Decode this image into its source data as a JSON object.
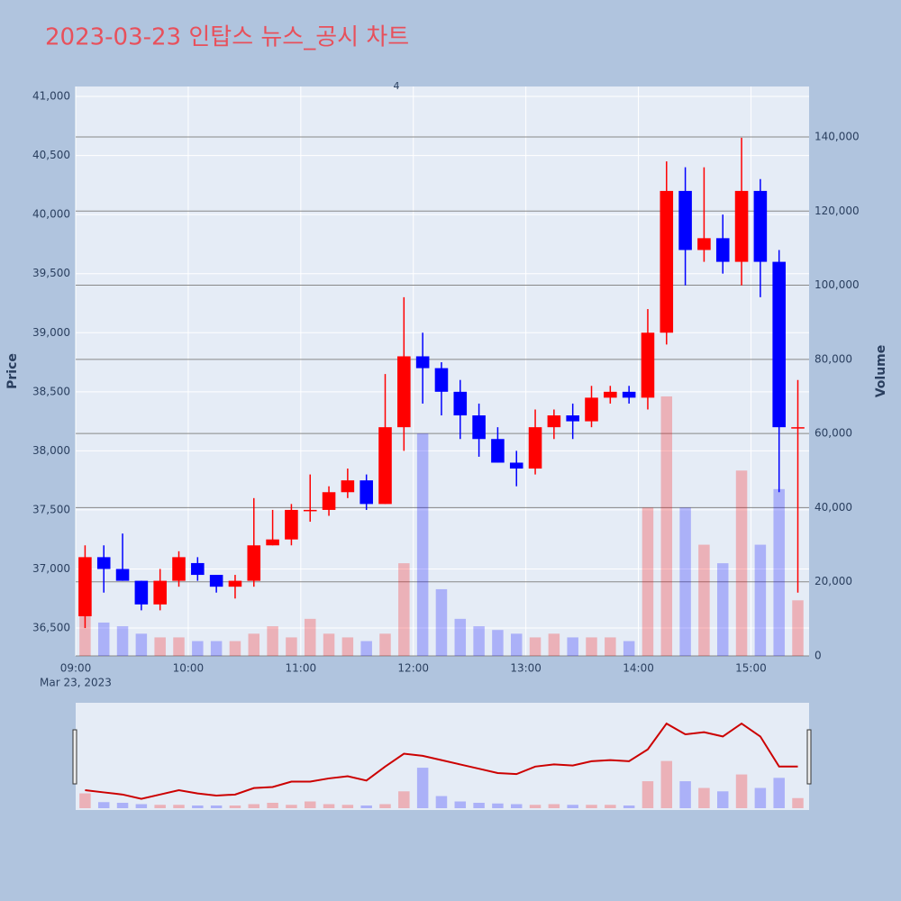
{
  "chart_data": {
    "type": "candlestick",
    "title": "2023-03-23 인탑스 뉴스_공시 차트",
    "y_title": "Price",
    "y2_title": "Volume",
    "x_date_label": "Mar 23, 2023",
    "annotation": {
      "x": "11:51",
      "text": "4"
    },
    "increasing_color": "#ff0000",
    "decreasing_color": "#0000ff",
    "grid": true,
    "x": [
      "09:00",
      "09:10",
      "09:20",
      "09:30",
      "09:40",
      "09:50",
      "10:00",
      "10:10",
      "10:20",
      "10:30",
      "10:40",
      "10:50",
      "11:00",
      "11:10",
      "11:20",
      "11:30",
      "11:40",
      "11:50",
      "12:00",
      "12:10",
      "12:20",
      "12:30",
      "12:40",
      "12:50",
      "13:00",
      "13:10",
      "13:20",
      "13:30",
      "13:40",
      "13:50",
      "14:00",
      "14:10",
      "14:20",
      "14:30",
      "14:40",
      "14:50",
      "15:00",
      "15:10",
      "15:20"
    ],
    "open": [
      36600,
      37100,
      37000,
      36900,
      36700,
      36900,
      37050,
      36950,
      36850,
      36900,
      37200,
      37250,
      37500,
      37500,
      37650,
      37750,
      37550,
      38200,
      38800,
      38700,
      38500,
      38300,
      38100,
      37900,
      37850,
      38200,
      38300,
      38250,
      38450,
      38500,
      38450,
      39000,
      40200,
      39700,
      39800,
      39600,
      40200,
      39600,
      38200
    ],
    "high": [
      37200,
      37200,
      37300,
      36900,
      37000,
      37150,
      37100,
      36950,
      36950,
      37600,
      37500,
      37550,
      37800,
      37700,
      37850,
      37800,
      38650,
      39300,
      39000,
      38750,
      38600,
      38400,
      38200,
      38000,
      38350,
      38350,
      38400,
      38550,
      38550,
      38550,
      39200,
      40450,
      40400,
      40400,
      40000,
      40650,
      40300,
      39700,
      38600
    ],
    "low": [
      36500,
      36800,
      36900,
      36650,
      36650,
      36850,
      36900,
      36800,
      36750,
      36850,
      37200,
      37200,
      37400,
      37450,
      37600,
      37500,
      37550,
      38000,
      38400,
      38300,
      38100,
      37950,
      37900,
      37700,
      37800,
      38100,
      38100,
      38200,
      38400,
      38400,
      38350,
      38900,
      39400,
      39600,
      39500,
      39400,
      39300,
      37650,
      36800
    ],
    "close": [
      37100,
      37000,
      36900,
      36700,
      36900,
      37100,
      36950,
      36850,
      36900,
      37200,
      37250,
      37500,
      37500,
      37650,
      37750,
      37550,
      38200,
      38800,
      38700,
      38500,
      38300,
      38100,
      37900,
      37850,
      38200,
      38300,
      38250,
      38450,
      38500,
      38450,
      39000,
      40200,
      39700,
      39800,
      39600,
      40200,
      39600,
      38200,
      38200
    ],
    "volume": [
      22000,
      9000,
      8000,
      6000,
      5000,
      5000,
      4000,
      4000,
      4000,
      6000,
      8000,
      5000,
      10000,
      6000,
      5000,
      4000,
      6000,
      25000,
      60000,
      18000,
      10000,
      8000,
      7000,
      6000,
      5000,
      6000,
      5000,
      5000,
      5000,
      4000,
      40000,
      70000,
      40000,
      30000,
      25000,
      50000,
      30000,
      45000,
      15000
    ],
    "xlim": [
      "09:00",
      "15:31"
    ],
    "xticks": [
      "09:00",
      "10:00",
      "11:00",
      "12:00",
      "13:00",
      "14:00",
      "15:00"
    ],
    "ylim": [
      36264,
      41084
    ],
    "yticks": [
      {
        "value": 36500,
        "label": "36,500"
      },
      {
        "value": 37000,
        "label": "37,000"
      },
      {
        "value": 37500,
        "label": "37,500"
      },
      {
        "value": 38000,
        "label": "38,000"
      },
      {
        "value": 38500,
        "label": "38,500"
      },
      {
        "value": 39000,
        "label": "39,000"
      },
      {
        "value": 39500,
        "label": "39,500"
      },
      {
        "value": 40000,
        "label": "40,000"
      },
      {
        "value": 40500,
        "label": "40,500"
      },
      {
        "value": 41000,
        "label": "41,000"
      }
    ],
    "y2lim": [
      0,
      153600
    ],
    "y2ticks": [
      0,
      {
        "value": 20000,
        "label": "20,000"
      },
      {
        "value": 40000,
        "label": "40,000"
      },
      {
        "value": 60000,
        "label": "60,000"
      },
      {
        "value": 80000,
        "label": "80,000"
      },
      {
        "value": 100000,
        "label": "100,000"
      },
      {
        "value": 120000,
        "label": "120,000"
      },
      {
        "value": 140000,
        "label": "140,000"
      }
    ]
  }
}
